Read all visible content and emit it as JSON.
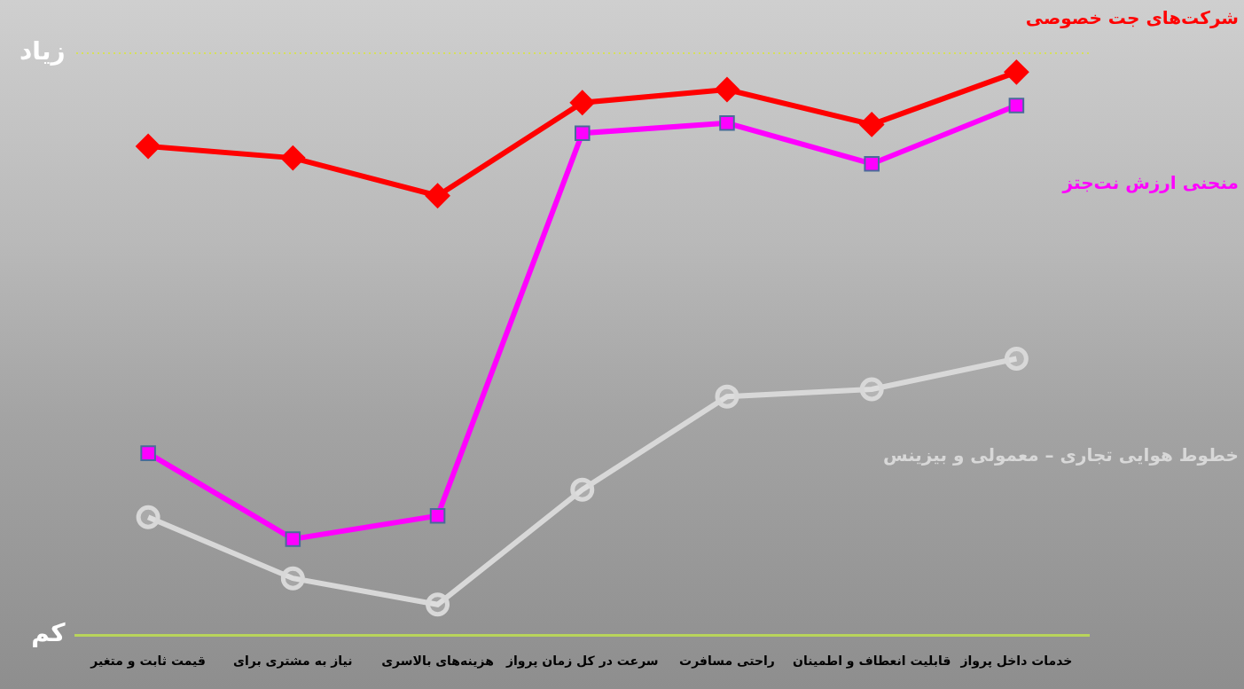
{
  "chart_data": {
    "type": "line",
    "categories": [
      "قیمت ثابت و متغیر",
      "نیاز به مشتری برای",
      "هزینه‌های بالاسری",
      "سرعت در کل زمان پرواز",
      "راحتی مسافرت",
      "قابلیت انعطاف و اطمینان",
      "خدمات داخل پرواز"
    ],
    "series": [
      {
        "name": "شرکت‌های جت خصوصی",
        "color": "#ff0000",
        "marker": "diamond",
        "values": [
          3.36,
          3.28,
          3.02,
          3.66,
          3.75,
          3.51,
          3.87
        ]
      },
      {
        "name": "منحنی ارزش نت‌جتز",
        "color": "#ff00ff",
        "marker": "square",
        "values": [
          1.25,
          0.66,
          0.82,
          3.45,
          3.52,
          3.24,
          3.64
        ]
      },
      {
        "name": "خطوط هوایی تجاری – معمولی و بیزینس",
        "color": "#d8d8d8",
        "marker": "circle",
        "values": [
          0.81,
          0.39,
          0.21,
          1.0,
          1.64,
          1.69,
          1.9
        ]
      }
    ],
    "ylim": [
      0,
      4
    ],
    "yticks": [
      {
        "value": 0,
        "label": "کم"
      },
      {
        "value": 4,
        "label": "زیاد"
      }
    ],
    "grid": true
  }
}
